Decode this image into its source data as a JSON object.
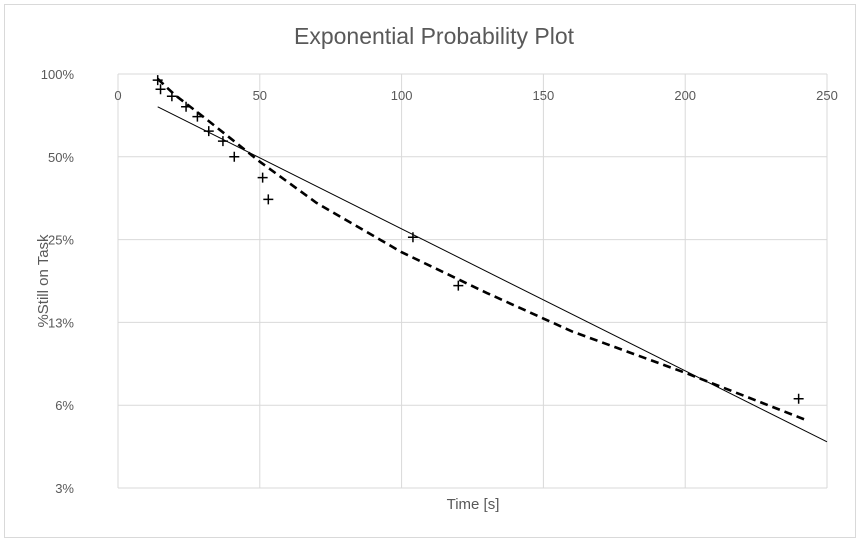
{
  "chart_data": {
    "type": "scatter",
    "title": "Exponential Probability Plot",
    "xlabel": "Time [s]",
    "ylabel": "%Still on Task",
    "xlim": [
      0,
      250
    ],
    "x_ticks": [
      0,
      50,
      100,
      150,
      200,
      250
    ],
    "y_scale": "log",
    "y_tick_labels": [
      "100%",
      "50%",
      "25%",
      "13%",
      "6%",
      "3%"
    ],
    "y_tick_values": [
      100,
      50,
      25,
      12.5,
      6.25,
      3.125
    ],
    "grid": true,
    "legend": "none",
    "series": [
      {
        "kind": "points",
        "marker": "plus",
        "x": [
          14,
          15,
          19,
          24,
          28,
          32,
          37,
          41,
          51,
          53,
          104,
          120,
          240
        ],
        "y": [
          95,
          88,
          83,
          76,
          70,
          62,
          57,
          50,
          42,
          35,
          25.5,
          17,
          6.6
        ]
      },
      {
        "kind": "line",
        "style": "solid",
        "x": [
          14,
          250
        ],
        "y": [
          76,
          4.6
        ]
      },
      {
        "kind": "line",
        "style": "dashed",
        "x": [
          14,
          20,
          30,
          40,
          50,
          70,
          100,
          130,
          160,
          200,
          243
        ],
        "y": [
          96,
          84,
          70,
          58,
          48,
          34,
          22.5,
          16,
          11.6,
          8.2,
          5.5
        ]
      }
    ]
  }
}
